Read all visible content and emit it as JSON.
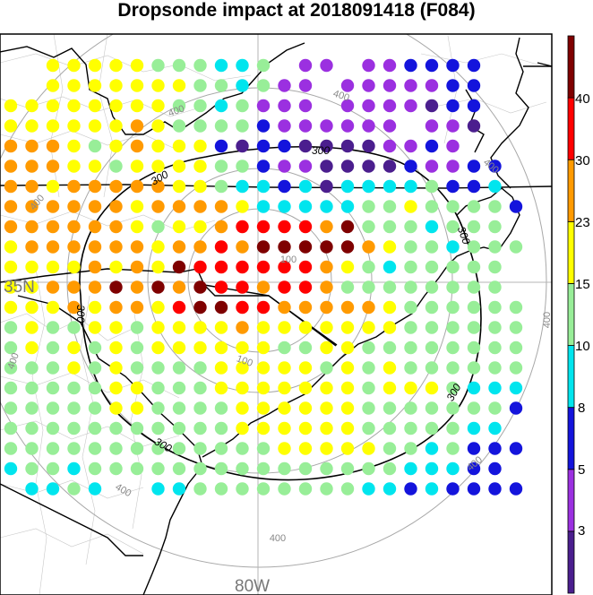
{
  "title": "Dropsonde impact at 2018091418 (F084)",
  "map": {
    "lat_label": "35N",
    "lon_label": "80W",
    "range_ring_labels": [
      "100",
      "100",
      "400",
      "400",
      "400",
      "400",
      "400",
      "400",
      "400",
      "400",
      "400"
    ],
    "contour_labels": [
      "300",
      "300",
      "300",
      "300",
      "300",
      "300"
    ]
  },
  "colorbar": {
    "tick_labels": [
      "3",
      "5",
      "8",
      "10",
      "15",
      "23",
      "30",
      "40"
    ],
    "colors": [
      "#4b1e8e",
      "#9b30e0",
      "#1414dc",
      "#00e5ee",
      "#98ee98",
      "#ffff00",
      "#ff9a00",
      "#ff0000",
      "#7f0000"
    ]
  },
  "dots": {
    "color_codes": "0 indigo, 1 purple, 2 blue, 3 cyan, 4 lightgreen, 5 yellow, 6 orange, 7 red, 8 darkred, . none",
    "rows": [
      "..55555444334.11.112222",
      "..5555555443411.1111122",
      "555555554434111.1111022",
      "5555556544442111111.110",
      "6665456555202200001121",
      "666554555544211000021122",
      "665666665543323033334223",
      "6666665666653333344544442",
      "666666545567777684443444",
      "5666666566768888865443444",
      "555565658777777654344444",
      "556668686877677644444444",
      "5556566578877666665444444",
      "4544554555565555555444444",
      "4545454555555445544444444",
      "4445454444555554545444444",
      "4444455444555555545554333",
      "4444455444455555544444442",
      "444444444445555554444433",
      "4444444444444555554434222",
      "344344444444444444433322",
      ".3343..334444444433232222"
    ]
  }
}
